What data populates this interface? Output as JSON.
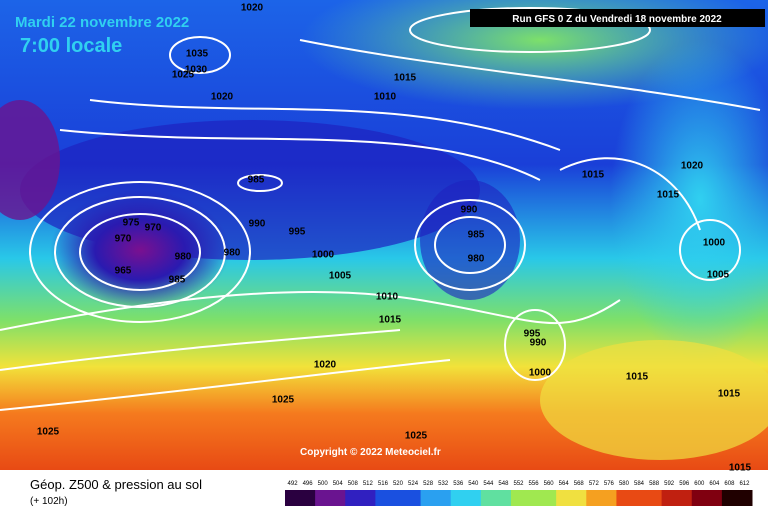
{
  "header": {
    "date": "Mardi 22 novembre 2022",
    "time": "7:00 locale",
    "run": "Run GFS 0 Z du Vendredi 18 novembre 2022"
  },
  "copyright": "Copyright © 2022 Meteociel.fr",
  "footer": {
    "title": "Géop. Z500 & pression au sol",
    "lead": "(+ 102h)"
  },
  "colorbar": {
    "labels": [
      492,
      496,
      500,
      504,
      508,
      512,
      516,
      520,
      524,
      528,
      532,
      536,
      540,
      544,
      548,
      552,
      556,
      560,
      564,
      568,
      572,
      576,
      580,
      584,
      588,
      592,
      596,
      600,
      604,
      608,
      612
    ]
  },
  "isobar_labels": [
    "1020",
    "1035",
    "1030",
    "1025",
    "1020",
    "1015",
    "1010",
    "985",
    "975",
    "970",
    "970",
    "990",
    "995",
    "980",
    "980",
    "965",
    "985",
    "1000",
    "1005",
    "990",
    "985",
    "980",
    "1010",
    "1015",
    "995",
    "990",
    "1000",
    "1020",
    "1025",
    "1025",
    "1025",
    "1015",
    "1020",
    "1015",
    "1000",
    "1005",
    "1015",
    "1015",
    "1015"
  ]
}
